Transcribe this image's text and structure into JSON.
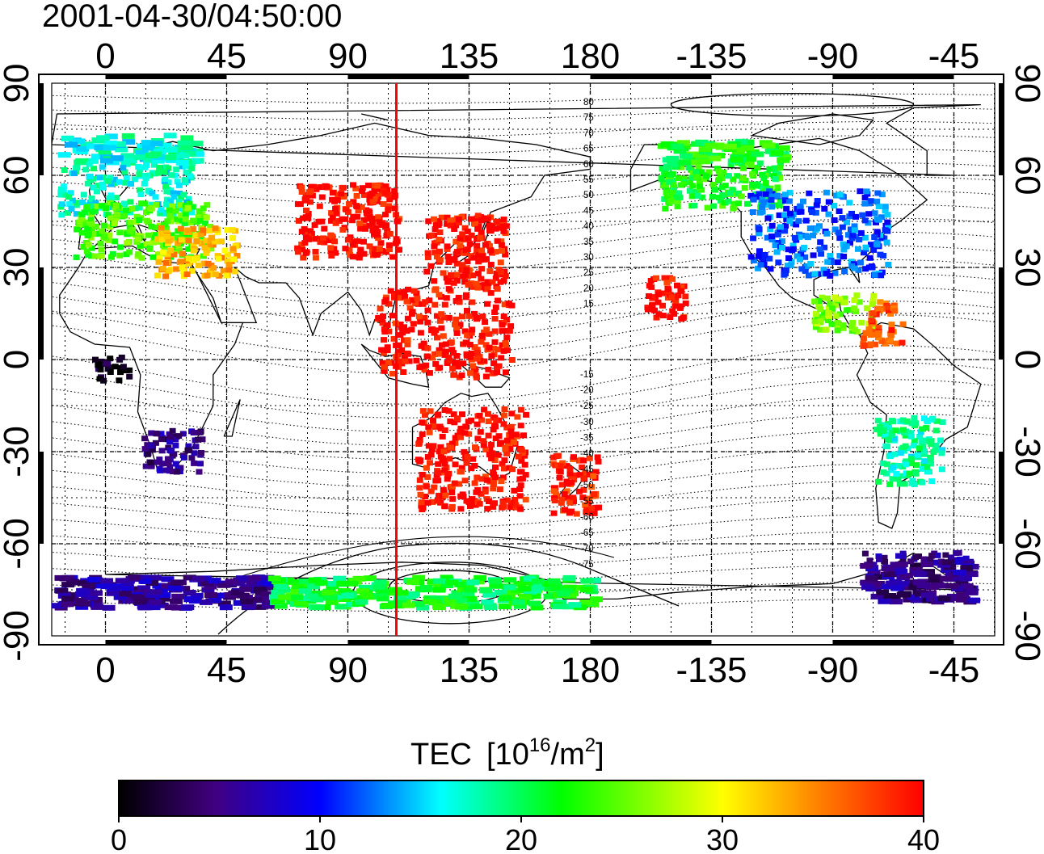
{
  "title": "2001-04-30/04:50:00",
  "top_ticks": [
    "0",
    "45",
    "90",
    "135",
    "180",
    "-135",
    "-90",
    "-45"
  ],
  "bottom_ticks": [
    "0",
    "45",
    "90",
    "135",
    "180",
    "-135",
    "-90",
    "-45"
  ],
  "left_ticks": [
    "90",
    "60",
    "30",
    "0",
    "-30",
    "-60",
    "-90"
  ],
  "right_ticks": [
    "90",
    "60",
    "30",
    "0",
    "-30",
    "-60",
    "-90"
  ],
  "north_mag_labels": [
    "80",
    "75",
    "70",
    "65",
    "60",
    "55",
    "50",
    "45",
    "40",
    "35",
    "30",
    "25",
    "20",
    "15"
  ],
  "south_mag_labels": [
    "-15",
    "-20",
    "-25",
    "-30",
    "-35",
    "-40",
    "-45",
    "-50",
    "-55",
    "-60",
    "-65",
    "-70",
    "-75"
  ],
  "colorbar": {
    "title": "TEC",
    "unit_base": "[10",
    "unit_exp": "16",
    "unit_mid": "/m",
    "unit_exp2": "2",
    "unit_end": "]",
    "ticks": [
      "0",
      "10",
      "20",
      "30",
      "40"
    ],
    "range": [
      0,
      40
    ],
    "colors": [
      "#000000",
      "#400080",
      "#0000ff",
      "#00ffff",
      "#00ff00",
      "#ffff00",
      "#ff0000"
    ]
  },
  "subsolar_longitude": 108,
  "colors": {
    "terminator_line": "#ff0000",
    "coastline": "#000000"
  },
  "chart_data": {
    "type": "heatmap",
    "title": "2001-04-30/04:50:00",
    "xlabel": "",
    "ylabel": "",
    "xlim": [
      -25,
      335
    ],
    "ylim": [
      -90,
      90
    ],
    "value_label": "TEC [10^16/m^2]",
    "value_range": [
      0,
      40
    ],
    "regions": [
      {
        "lon": [
          -18,
          32
        ],
        "lat": [
          48,
          74
        ],
        "tec": 17
      },
      {
        "lon": [
          -12,
          38
        ],
        "lat": [
          34,
          52
        ],
        "tec": 24
      },
      {
        "lon": [
          18,
          48
        ],
        "lat": [
          28,
          44
        ],
        "tec": 33
      },
      {
        "lon": [
          70,
          108
        ],
        "lat": [
          34,
          58
        ],
        "tec": 40
      },
      {
        "lon": [
          118,
          148
        ],
        "lat": [
          24,
          48
        ],
        "tec": 40
      },
      {
        "lon": [
          100,
          150
        ],
        "lat": [
          -5,
          24
        ],
        "tec": 40
      },
      {
        "lon": [
          115,
          155
        ],
        "lat": [
          -48,
          -15
        ],
        "tec": 40
      },
      {
        "lon": [
          165,
          182
        ],
        "lat": [
          -50,
          -30
        ],
        "tec": 39
      },
      {
        "lon": [
          200,
          215
        ],
        "lat": [
          14,
          28
        ],
        "tec": 40
      },
      {
        "lon": [
          205,
          250
        ],
        "lat": [
          50,
          72
        ],
        "tec": 22
      },
      {
        "lon": [
          238,
          290
        ],
        "lat": [
          28,
          56
        ],
        "tec": 12
      },
      {
        "lon": [
          262,
          285
        ],
        "lat": [
          10,
          22
        ],
        "tec": 26
      },
      {
        "lon": [
          280,
          295
        ],
        "lat": [
          5,
          20
        ],
        "tec": 37
      },
      {
        "lon": [
          13,
          35
        ],
        "lat": [
          -36,
          -22
        ],
        "tec": 5
      },
      {
        "lon": [
          -5,
          8
        ],
        "lat": [
          -6,
          2
        ],
        "tec": 1
      },
      {
        "lon": [
          285,
          310
        ],
        "lat": [
          -40,
          -18
        ],
        "tec": 18
      },
      {
        "lon": [
          280,
          320
        ],
        "lat": [
          -78,
          -62
        ],
        "tec": 5
      },
      {
        "lon": [
          -20,
          60
        ],
        "lat": [
          -80,
          -70
        ],
        "tec": 6
      },
      {
        "lon": [
          60,
          180
        ],
        "lat": [
          -80,
          -70
        ],
        "tec": 21
      }
    ]
  }
}
